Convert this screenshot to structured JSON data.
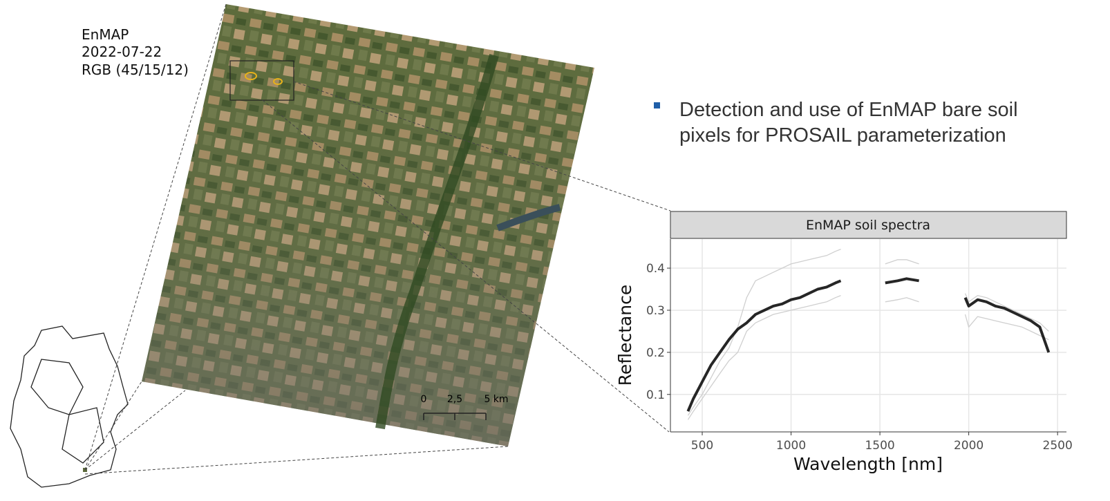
{
  "annotation": {
    "lines": [
      "EnMAP",
      "2022-07-22",
      "RGB (45/15/12)"
    ]
  },
  "bullet": {
    "lines": [
      "Detection and use of EnMAP bare soil",
      "pixels for PROSAIL parameterization"
    ]
  },
  "scale_bar": {
    "labels": [
      "0",
      "2,5",
      "5 km"
    ]
  },
  "chart_data": {
    "type": "line",
    "title": "EnMAP soil spectra",
    "x_label": "Wavelength [nm]",
    "y_label": "Reflectance",
    "x": [
      420,
      450,
      500,
      550,
      600,
      650,
      700,
      750,
      800,
      850,
      900,
      950,
      1000,
      1050,
      1100,
      1150,
      1200,
      1250,
      1280,
      1400,
      1530,
      1600,
      1650,
      1720,
      1850,
      1980,
      2000,
      2050,
      2100,
      2150,
      2200,
      2250,
      2300,
      2350,
      2400,
      2450
    ],
    "series": [
      {
        "color": "#cfcfcf",
        "values": [
          0.05,
          0.07,
          0.1,
          0.14,
          0.18,
          0.21,
          0.26,
          0.33,
          0.37,
          0.38,
          0.39,
          0.4,
          0.41,
          0.415,
          0.42,
          0.425,
          0.43,
          0.44,
          0.445,
          null,
          0.41,
          0.42,
          0.42,
          0.41,
          null,
          0.34,
          0.32,
          0.335,
          0.33,
          0.32,
          0.31,
          0.3,
          0.29,
          0.28,
          0.27,
          0.25
        ]
      },
      {
        "color": "#cfcfcf",
        "values": [
          0.04,
          0.06,
          0.09,
          0.12,
          0.15,
          0.18,
          0.2,
          0.25,
          0.27,
          0.28,
          0.29,
          0.295,
          0.3,
          0.305,
          0.31,
          0.315,
          0.32,
          0.33,
          0.335,
          null,
          0.32,
          0.325,
          0.33,
          0.32,
          null,
          0.29,
          0.26,
          0.285,
          0.28,
          0.275,
          0.27,
          0.265,
          0.26,
          0.25,
          0.24,
          0.23
        ]
      },
      {
        "color": "#000000",
        "values": [
          0.06,
          0.09,
          0.13,
          0.17,
          0.2,
          0.23,
          0.255,
          0.27,
          0.29,
          0.3,
          0.31,
          0.315,
          0.325,
          0.33,
          0.34,
          0.35,
          0.355,
          0.365,
          0.37,
          null,
          0.365,
          0.37,
          0.375,
          0.37,
          null,
          0.33,
          0.31,
          0.325,
          0.32,
          0.31,
          0.305,
          0.295,
          0.285,
          0.275,
          0.26,
          0.2
        ]
      }
    ],
    "xlim": [
      321,
      2550
    ],
    "xticks": [
      500,
      1000,
      1500,
      2000,
      2500
    ],
    "ylim": [
      0.011,
      0.469
    ],
    "yticks": [
      0.1,
      0.2,
      0.3,
      0.4
    ],
    "grid": true
  }
}
